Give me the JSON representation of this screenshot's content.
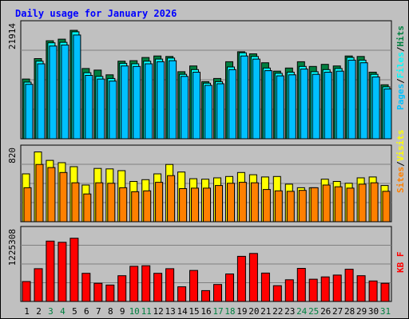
{
  "chart_data": {
    "type": "bar",
    "title": "Daily usage for January 2026",
    "title_color": "#0000ff",
    "categories": [
      "1",
      "2",
      "3",
      "4",
      "5",
      "6",
      "7",
      "8",
      "9",
      "10",
      "11",
      "12",
      "13",
      "14",
      "15",
      "16",
      "17",
      "18",
      "19",
      "20",
      "21",
      "22",
      "23",
      "24",
      "25",
      "26",
      "27",
      "28",
      "29",
      "30",
      "31"
    ],
    "weekend_days": [
      3,
      4,
      10,
      11,
      17,
      18,
      24,
      25,
      31
    ],
    "weekday_label_color": "#000000",
    "weekend_label_color": "#008040",
    "grid": true,
    "legend_placement": "right",
    "panels": [
      {
        "id": "hits-files-pages",
        "max_label": "21914",
        "ylim": [
          0,
          21914
        ],
        "series": [
          {
            "name": "Hits",
            "color": "#008040",
            "values": [
              11400,
              15300,
              18700,
              19000,
              20700,
              13400,
              13100,
              12200,
              14800,
              14900,
              15500,
              15800,
              15700,
              12800,
              13900,
              10900,
              11500,
              14700,
              16600,
              16200,
              14500,
              12900,
              13500,
              14700,
              13800,
              14200,
              13900,
              15800,
              15700,
              12700,
              10300
            ]
          },
          {
            "name": "Files",
            "color": "#00ffff",
            "values": [
              10800,
              14800,
              18300,
              18400,
              20400,
              12600,
              11900,
              11500,
              14400,
              14300,
              14800,
              15200,
              15400,
              12300,
              13200,
              10600,
              10900,
              13700,
              16400,
              15700,
              13500,
              12500,
              12700,
              13800,
              12800,
              13200,
              13400,
              15500,
              15000,
              12300,
              9900
            ]
          },
          {
            "name": "Pages",
            "color": "#00c0ff",
            "values": [
              10400,
              14300,
              17700,
              17900,
              19800,
              12100,
              11400,
              11000,
              13900,
              13800,
              14300,
              14700,
              14900,
              11900,
              12700,
              10200,
              10500,
              13200,
              15800,
              15200,
              13000,
              12000,
              12200,
              13300,
              12300,
              12700,
              12900,
              15000,
              14500,
              11800,
              9500
            ]
          }
        ]
      },
      {
        "id": "visits-sites",
        "max_label": "820",
        "ylim": [
          0,
          820
        ],
        "series": [
          {
            "name": "Visits",
            "color": "#ffff00",
            "values": [
              535,
              780,
              685,
              660,
              615,
              410,
              595,
              590,
              570,
              450,
              470,
              535,
              640,
              555,
              480,
              475,
              490,
              505,
              550,
              525,
              500,
              505,
              420,
              380,
              380,
              475,
              450,
              430,
              490,
              500,
              405
            ]
          },
          {
            "name": "Sites",
            "color": "#ff8000",
            "values": [
              380,
              640,
              605,
              550,
              435,
              310,
              435,
              430,
              380,
              335,
              345,
              440,
              515,
              370,
              375,
              375,
              405,
              430,
              440,
              435,
              360,
              345,
              340,
              350,
              380,
              410,
              390,
              375,
              420,
              435,
              340
            ]
          }
        ]
      },
      {
        "id": "kbytes",
        "max_label": "1225308",
        "ylim": [
          0,
          1225308
        ],
        "series": [
          {
            "name": "KBytes",
            "color": "#ff0000",
            "values": [
              340000,
              560000,
              1030000,
              1010000,
              1080000,
              480000,
              310000,
              280000,
              440000,
              600000,
              610000,
              480000,
              560000,
              250000,
              530000,
              185000,
              290000,
              470000,
              770000,
              820000,
              485000,
              270000,
              370000,
              565000,
              380000,
              420000,
              450000,
              550000,
              440000,
              350000,
              310000
            ]
          }
        ]
      }
    ],
    "legend": [
      {
        "panel": 0,
        "items": [
          {
            "text": "Pages",
            "color": "#00c0ff"
          },
          {
            "text": "/",
            "color": "#000000"
          },
          {
            "text": "Files",
            "color": "#00ffff"
          },
          {
            "text": "/",
            "color": "#000000"
          },
          {
            "text": "Hits",
            "color": "#008040"
          }
        ]
      },
      {
        "panel": 1,
        "items": [
          {
            "text": "Sites",
            "color": "#ff8000"
          },
          {
            "text": "/",
            "color": "#000000"
          },
          {
            "text": "Visits",
            "color": "#ffff00"
          }
        ]
      },
      {
        "panel": 2,
        "items": [
          {
            "text": "KB F",
            "color": "#ff0000"
          }
        ]
      }
    ]
  }
}
